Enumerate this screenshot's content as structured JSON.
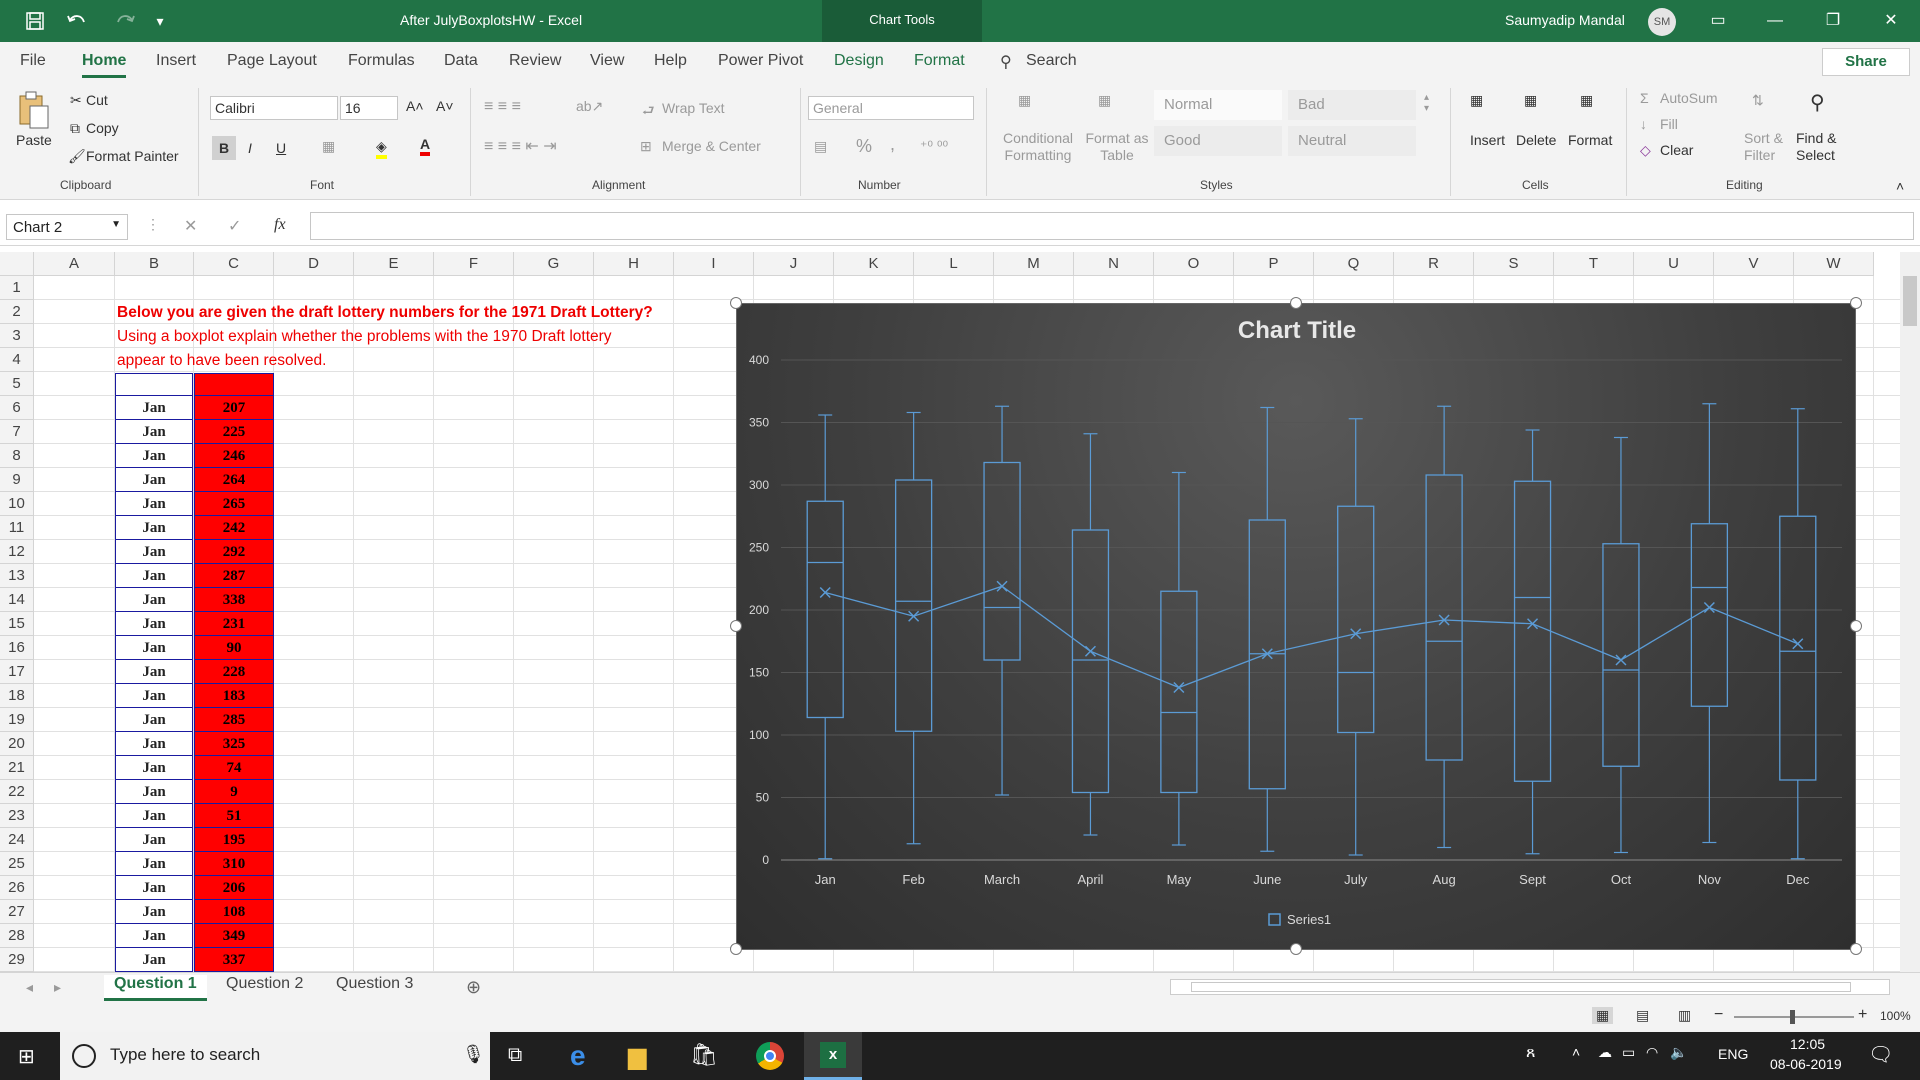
{
  "window": {
    "doc_title": "After JulyBoxplotsHW  -  Excel",
    "chart_tools": "Chart Tools",
    "user_name": "Saumyadip Mandal",
    "user_initials": "SM"
  },
  "menu": {
    "tabs": [
      "File",
      "Home",
      "Insert",
      "Page Layout",
      "Formulas",
      "Data",
      "Review",
      "View",
      "Help",
      "Power Pivot",
      "Design",
      "Format"
    ],
    "search": "Search",
    "share": "Share"
  },
  "ribbon": {
    "clipboard": {
      "paste": "Paste",
      "cut": "Cut",
      "copy": "Copy",
      "format_painter": "Format Painter",
      "label": "Clipboard"
    },
    "font": {
      "name": "Calibri",
      "size": "16",
      "bold": "B",
      "italic": "I",
      "underline": "U",
      "label": "Font"
    },
    "alignment": {
      "wrap": "Wrap Text",
      "merge": "Merge & Center",
      "label": "Alignment"
    },
    "number": {
      "format": "General",
      "label": "Number",
      "percent": "%",
      "comma": ","
    },
    "styles": {
      "conditional": "Conditional Formatting",
      "format_table": "Format as Table",
      "normal": "Normal",
      "bad": "Bad",
      "good": "Good",
      "neutral": "Neutral",
      "label": "Styles"
    },
    "cells": {
      "insert": "Insert",
      "delete": "Delete",
      "format": "Format",
      "label": "Cells"
    },
    "editing": {
      "autosum": "AutoSum",
      "fill": "Fill",
      "clear": "Clear",
      "sort": "Sort & Filter",
      "find": "Find & Select",
      "label": "Editing"
    }
  },
  "formula_bar": {
    "name_box": "Chart 2",
    "fx": "fx",
    "value": ""
  },
  "columns": [
    "A",
    "B",
    "C",
    "D",
    "E",
    "F",
    "G",
    "H",
    "I",
    "J",
    "K",
    "L",
    "M",
    "N",
    "O",
    "P",
    "Q",
    "R",
    "S",
    "T",
    "U",
    "V",
    "W"
  ],
  "rows": [
    "1",
    "2",
    "3",
    "4",
    "5",
    "6",
    "7",
    "8",
    "9",
    "10",
    "11",
    "12",
    "13",
    "14",
    "15",
    "16",
    "17",
    "18",
    "19",
    "20",
    "21",
    "22",
    "23",
    "24",
    "25",
    "26",
    "27",
    "28",
    "29"
  ],
  "instructions": {
    "line1": "Below you are given the draft lottery numbers for the 1971 Draft Lottery?",
    "line2": "Using a boxplot explain whether the problems with the 1970 Draft lottery",
    "line3": "appear to have been resolved."
  },
  "table": {
    "months": [
      "Jan",
      "Jan",
      "Jan",
      "Jan",
      "Jan",
      "Jan",
      "Jan",
      "Jan",
      "Jan",
      "Jan",
      "Jan",
      "Jan",
      "Jan",
      "Jan",
      "Jan",
      "Jan",
      "Jan",
      "Jan",
      "Jan",
      "Jan",
      "Jan",
      "Jan",
      "Jan",
      "Jan"
    ],
    "values": [
      "207",
      "225",
      "246",
      "264",
      "265",
      "242",
      "292",
      "287",
      "338",
      "231",
      "90",
      "228",
      "183",
      "285",
      "325",
      "74",
      "9",
      "51",
      "195",
      "310",
      "206",
      "108",
      "349",
      "337"
    ]
  },
  "chart_data": {
    "type": "box",
    "title": "Chart Title",
    "categories": [
      "Jan",
      "Feb",
      "March",
      "April",
      "May",
      "June",
      "July",
      "Aug",
      "Sept",
      "Oct",
      "Nov",
      "Dec"
    ],
    "ylim": [
      0,
      400
    ],
    "yticks": [
      0,
      50,
      100,
      150,
      200,
      250,
      300,
      350,
      400
    ],
    "series": [
      {
        "name": "Series1",
        "min": [
          1,
          13,
          52,
          20,
          12,
          7,
          4,
          10,
          5,
          6,
          14,
          1
        ],
        "q1": [
          114,
          103,
          160,
          54,
          54,
          57,
          102,
          80,
          63,
          75,
          123,
          64
        ],
        "median": [
          238,
          207,
          202,
          160,
          118,
          165,
          150,
          175,
          210,
          152,
          218,
          167
        ],
        "q3": [
          287,
          304,
          318,
          264,
          215,
          272,
          283,
          308,
          303,
          253,
          269,
          275
        ],
        "max": [
          356,
          358,
          363,
          341,
          310,
          362,
          353,
          363,
          344,
          338,
          365,
          361
        ],
        "mean": [
          214,
          195,
          219,
          167,
          138,
          165,
          181,
          192,
          189,
          160,
          202,
          173
        ]
      }
    ],
    "legend": "bottom",
    "grid": true
  },
  "sheets": [
    "Question 1",
    "Question 2",
    "Question 3"
  ],
  "status": {
    "zoom": "100%"
  },
  "taskbar": {
    "search": "Type here to search",
    "lang": "ENG",
    "time": "12:05",
    "date": "08-06-2019"
  }
}
